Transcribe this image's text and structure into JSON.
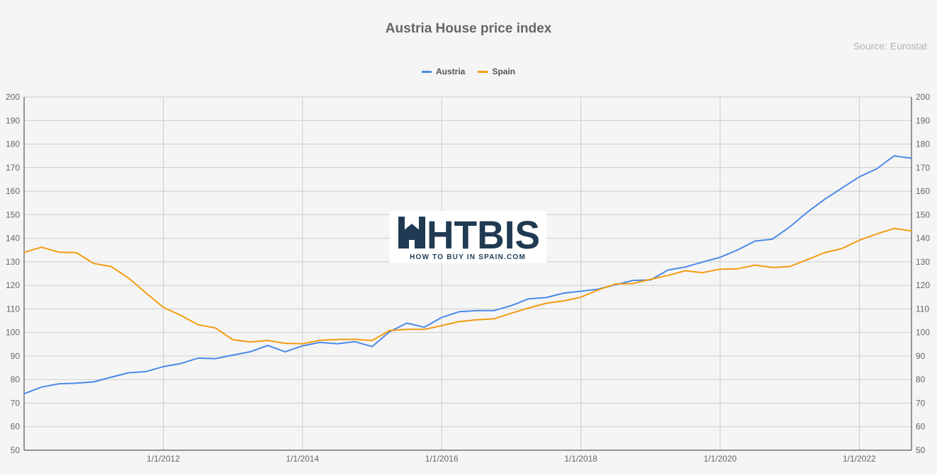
{
  "title": "Austria House price index",
  "source": "Source: Eurostat",
  "watermark": {
    "brand": "HTBIS",
    "tagline": "HOW TO BUY IN SPAIN.COM"
  },
  "colors": {
    "austria": "#4a8ae8",
    "spain": "#f39c12",
    "grid": "#cccccc",
    "axis": "#333333",
    "text": "#666666",
    "brand_dark": "#1f3a52"
  },
  "chart_data": {
    "type": "line",
    "x_ticks": [
      "1/1/2012",
      "1/1/2014",
      "1/1/2016",
      "1/1/2018",
      "1/1/2020",
      "1/1/2022"
    ],
    "ylim": [
      50,
      200
    ],
    "y_ticks": [
      50,
      60,
      70,
      80,
      90,
      100,
      110,
      120,
      130,
      140,
      150,
      160,
      170,
      180,
      190,
      200
    ],
    "y_axis_both_sides": true,
    "grid": true,
    "legend": "top",
    "x": [
      "2010-Q1",
      "2010-Q2",
      "2010-Q3",
      "2010-Q4",
      "2011-Q1",
      "2011-Q2",
      "2011-Q3",
      "2011-Q4",
      "2012-Q1",
      "2012-Q2",
      "2012-Q3",
      "2012-Q4",
      "2013-Q1",
      "2013-Q2",
      "2013-Q3",
      "2013-Q4",
      "2014-Q1",
      "2014-Q2",
      "2014-Q3",
      "2014-Q4",
      "2015-Q1",
      "2015-Q2",
      "2015-Q3",
      "2015-Q4",
      "2016-Q1",
      "2016-Q2",
      "2016-Q3",
      "2016-Q4",
      "2017-Q1",
      "2017-Q2",
      "2017-Q3",
      "2017-Q4",
      "2018-Q1",
      "2018-Q2",
      "2018-Q3",
      "2018-Q4",
      "2019-Q1",
      "2019-Q2",
      "2019-Q3",
      "2019-Q4",
      "2020-Q1",
      "2020-Q2",
      "2020-Q3",
      "2020-Q4",
      "2021-Q1",
      "2021-Q2",
      "2021-Q3",
      "2021-Q4",
      "2022-Q1",
      "2022-Q2",
      "2022-Q3",
      "2022-Q4"
    ],
    "series": [
      {
        "name": "Austria",
        "values": [
          74.0,
          76.8,
          78.2,
          78.5,
          79.0,
          81.0,
          82.9,
          83.4,
          85.5,
          86.8,
          89.1,
          88.9,
          90.4,
          91.8,
          94.5,
          91.8,
          94.3,
          95.8,
          95.2,
          96.1,
          94.0,
          100.3,
          104.0,
          102.2,
          106.4,
          108.8,
          109.3,
          109.3,
          111.4,
          114.3,
          114.8,
          116.7,
          117.5,
          118.4,
          120.3,
          122.1,
          122.3,
          126.5,
          127.8,
          129.9,
          131.9,
          135.0,
          138.8,
          139.6,
          144.8,
          151.0,
          156.5,
          161.3,
          166.1,
          169.5,
          175.0,
          174.0
        ]
      },
      {
        "name": "Spain",
        "values": [
          134.0,
          136.2,
          134.1,
          133.9,
          129.3,
          128.0,
          123.1,
          116.8,
          110.7,
          107.3,
          103.3,
          101.9,
          96.9,
          96.0,
          96.6,
          95.4,
          95.2,
          96.7,
          97.0,
          97.1,
          96.6,
          100.8,
          101.3,
          101.3,
          102.9,
          104.6,
          105.4,
          105.8,
          108.2,
          110.4,
          112.4,
          113.4,
          115.0,
          118.1,
          120.6,
          120.8,
          122.6,
          124.2,
          126.2,
          125.4,
          126.9,
          127.0,
          128.6,
          127.6,
          128.0,
          130.9,
          133.9,
          135.6,
          139.2,
          141.8,
          144.2,
          143.1
        ]
      }
    ]
  }
}
